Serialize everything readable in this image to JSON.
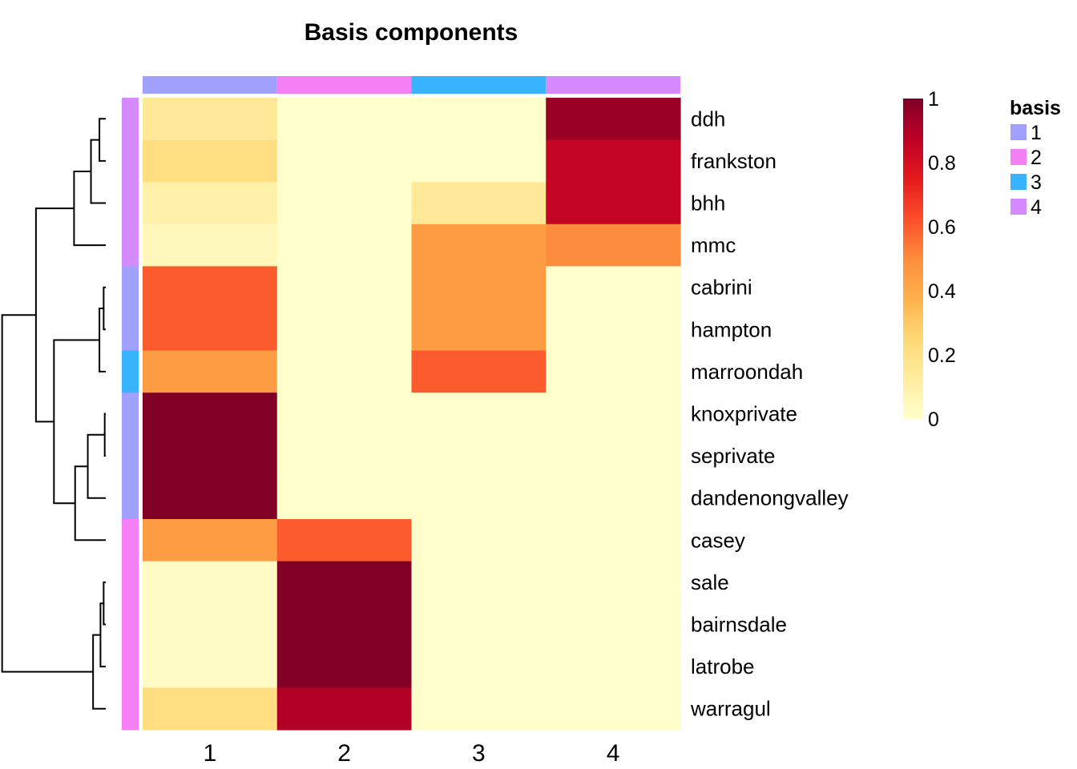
{
  "chart_data": {
    "type": "heatmap",
    "title": "Basis components",
    "columns": [
      "1",
      "2",
      "3",
      "4"
    ],
    "rows": [
      "ddh",
      "frankston",
      "bhh",
      "mmc",
      "cabrini",
      "hampton",
      "marroondah",
      "knoxprivate",
      "seprivate",
      "dandenongvalley",
      "casey",
      "sale",
      "bairnsdale",
      "latrobe",
      "warragul"
    ],
    "values": [
      [
        0.15,
        0.0,
        0.0,
        0.95
      ],
      [
        0.22,
        0.0,
        0.0,
        0.85
      ],
      [
        0.1,
        0.0,
        0.15,
        0.85
      ],
      [
        0.05,
        0.0,
        0.45,
        0.5
      ],
      [
        0.6,
        0.0,
        0.45,
        0.0
      ],
      [
        0.6,
        0.0,
        0.45,
        0.0
      ],
      [
        0.45,
        0.0,
        0.6,
        0.0
      ],
      [
        1.0,
        0.0,
        0.0,
        0.0
      ],
      [
        1.0,
        0.0,
        0.0,
        0.0
      ],
      [
        1.0,
        0.0,
        0.0,
        0.0
      ],
      [
        0.45,
        0.6,
        0.0,
        0.0
      ],
      [
        0.02,
        1.0,
        0.0,
        0.0
      ],
      [
        0.02,
        1.0,
        0.0,
        0.0
      ],
      [
        0.02,
        1.0,
        0.0,
        0.0
      ],
      [
        0.22,
        0.9,
        0.0,
        0.0
      ]
    ],
    "column_annotation": [
      "1",
      "2",
      "3",
      "4"
    ],
    "row_annotation": [
      "4",
      "4",
      "4",
      "4",
      "1",
      "1",
      "3",
      "1",
      "1",
      "1",
      "2",
      "2",
      "2",
      "2",
      "2"
    ],
    "annotation_colors": {
      "1": "#A0A0FF",
      "2": "#F57FF5",
      "3": "#38B3FF",
      "4": "#D58BFF"
    },
    "colorbar": {
      "min": 0,
      "max": 1,
      "ticks": [
        "0",
        "0.2",
        "0.4",
        "0.6",
        "0.8",
        "1"
      ]
    },
    "legend": {
      "title": "basis",
      "entries": [
        "1",
        "2",
        "3",
        "4"
      ]
    },
    "color_scale": [
      "#FFFFCC",
      "#FFEDA0",
      "#FED976",
      "#FEB24C",
      "#FD8D3C",
      "#FC4E2A",
      "#E31A1C",
      "#BD0026",
      "#800026"
    ],
    "dendrogram": {
      "merges": [
        [
          "ddh",
          "frankston"
        ],
        [
          "m1",
          "bhh"
        ],
        [
          "m2",
          "mmc"
        ],
        [
          "cabrini",
          "hampton"
        ],
        [
          "m4",
          "marroondah"
        ],
        [
          "knoxprivate",
          "seprivate"
        ],
        [
          "m6",
          "dandenongvalley"
        ],
        [
          "m7",
          "casey"
        ],
        [
          "m5",
          "m8"
        ],
        [
          "sale",
          "bairnsdale"
        ],
        [
          "m10",
          "latrobe"
        ],
        [
          "m11",
          "warragul"
        ],
        [
          "m3",
          "m9"
        ],
        [
          "m13",
          "m12"
        ]
      ],
      "heights": [
        0.06,
        0.14,
        0.3,
        0.02,
        0.06,
        0.01,
        0.17,
        0.29,
        0.49,
        0.02,
        0.05,
        0.12,
        0.66,
        0.98
      ]
    }
  }
}
